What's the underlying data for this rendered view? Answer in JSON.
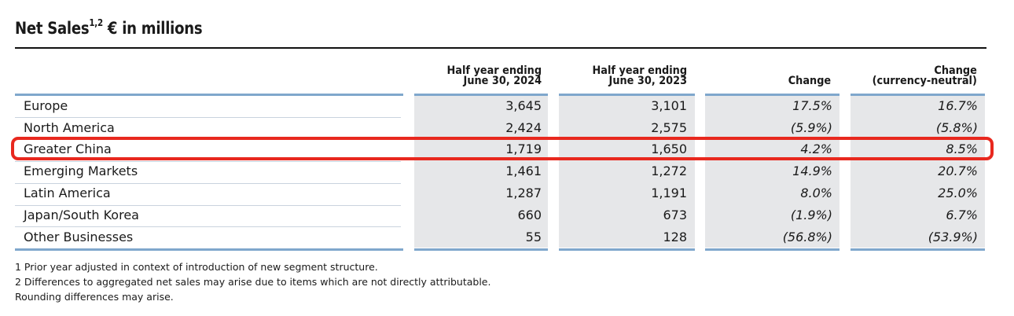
{
  "title": {
    "text": "Net Sales",
    "sup": "1,2",
    "suffix": "€ in millions"
  },
  "columns": [
    {
      "line1": "Half year ending",
      "line2": "June 30, 2024"
    },
    {
      "line1": "Half year ending",
      "line2": "June 30, 2023"
    },
    {
      "line1": "",
      "line2": "Change"
    },
    {
      "line1": "Change",
      "line2": "(currency-neutral)"
    }
  ],
  "rows": [
    {
      "label": "Europe",
      "v2024": "3,645",
      "v2023": "3,101",
      "change": "17.5%",
      "change_cn": "16.7%"
    },
    {
      "label": "North America",
      "v2024": "2,424",
      "v2023": "2,575",
      "change": "(5.9%)",
      "change_cn": "(5.8%)"
    },
    {
      "label": "Greater China",
      "v2024": "1,719",
      "v2023": "1,650",
      "change": "4.2%",
      "change_cn": "8.5%"
    },
    {
      "label": "Emerging Markets",
      "v2024": "1,461",
      "v2023": "1,272",
      "change": "14.9%",
      "change_cn": "20.7%"
    },
    {
      "label": "Latin America",
      "v2024": "1,287",
      "v2023": "1,191",
      "change": "8.0%",
      "change_cn": "25.0%"
    },
    {
      "label": "Japan/South Korea",
      "v2024": "660",
      "v2023": "673",
      "change": "(1.9%)",
      "change_cn": "6.7%"
    },
    {
      "label": "Other Businesses",
      "v2024": "55",
      "v2023": "128",
      "change": "(56.8%)",
      "change_cn": "(53.9%)"
    }
  ],
  "highlight_row": "Greater China",
  "highlight_color": "#e8281e",
  "accent_color": "#7fa7cc",
  "shade_color": "#e6e7e9",
  "footnotes": [
    "1 Prior year adjusted in context of introduction of new segment structure.",
    "2 Differences to aggregated net sales may arise due to items which are not directly attributable.",
    "Rounding differences may arise."
  ]
}
